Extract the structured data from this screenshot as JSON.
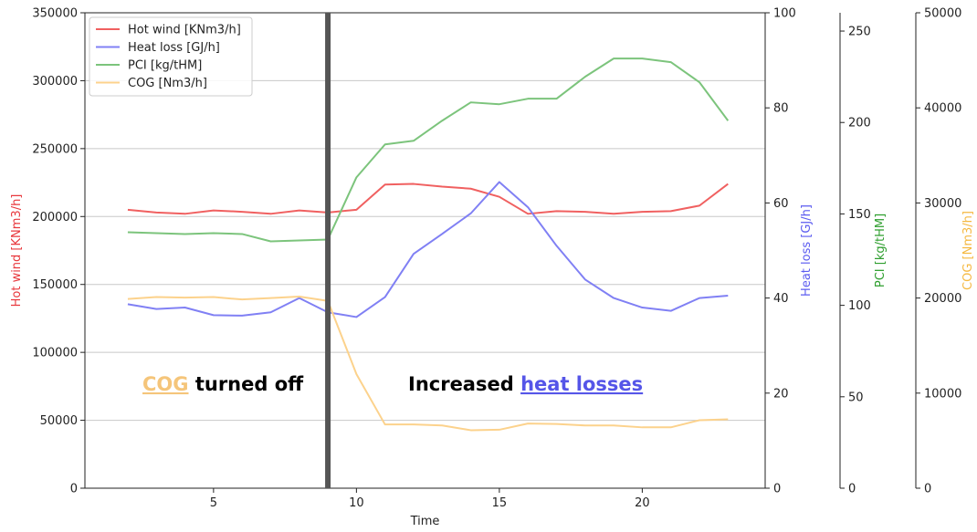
{
  "chart_data": {
    "type": "line",
    "xlabel": "Time",
    "x": [
      2,
      3,
      4,
      5,
      6,
      7,
      8,
      9,
      10,
      11,
      12,
      13,
      14,
      15,
      16,
      17,
      18,
      19,
      20,
      21,
      22,
      23
    ],
    "xticks": [
      5,
      10,
      15,
      20
    ],
    "xlim": [
      0.5,
      24.3
    ],
    "grid": "horizontal",
    "legend_position": "top-left",
    "axes": [
      {
        "id": "hot",
        "label": "Hot wind [KNm3/h]",
        "color": "#e8383d",
        "lim": [
          0,
          350000
        ],
        "ticks": [
          0,
          50000,
          100000,
          150000,
          200000,
          250000,
          300000,
          350000
        ]
      },
      {
        "id": "heat",
        "label": "Heat loss [GJ/h]",
        "color": "#5b5bf0",
        "lim": [
          0,
          100
        ],
        "ticks": [
          0,
          20,
          40,
          60,
          80,
          100
        ]
      },
      {
        "id": "pci",
        "label": "PCI [kg/tHM]",
        "color": "#2e9e2e",
        "lim": [
          0,
          260
        ],
        "ticks": [
          0,
          50,
          100,
          150,
          200,
          250
        ]
      },
      {
        "id": "cog",
        "label": "COG [Nm3/h]",
        "color": "#f5b942",
        "lim": [
          0,
          50000
        ],
        "ticks": [
          0,
          10000,
          20000,
          30000,
          40000,
          50000
        ]
      }
    ],
    "series": [
      {
        "name": "Hot wind [KNm3/h]",
        "axis": "hot",
        "color": "#f06060",
        "values": [
          205000,
          203000,
          202000,
          204500,
          203500,
          202000,
          204500,
          203000,
          205000,
          223500,
          224000,
          222000,
          220500,
          214500,
          202000,
          204000,
          203500,
          202000,
          203500,
          204000,
          208000,
          224000
        ],
        "x_start": 2
      },
      {
        "name": "Heat loss [GJ/h]",
        "axis": "heat",
        "color": "#8080f4",
        "values": [
          38.7,
          37.7,
          38.0,
          36.4,
          36.3,
          37.0,
          40.0,
          37.0,
          36.0,
          40.2,
          49.3,
          53.5,
          57.8,
          64.4,
          59.1,
          51.0,
          43.9,
          40.0,
          38.0,
          37.3,
          40.0,
          40.5
        ],
        "x_start": 2
      },
      {
        "name": "PCI [kg/tHM]",
        "axis": "pci",
        "color": "#7cc47c",
        "values": [
          140,
          139.5,
          139,
          139.5,
          139,
          135,
          135.5,
          136,
          170,
          188,
          190,
          201,
          211,
          210,
          213,
          213,
          225,
          235,
          235,
          233,
          222,
          201
        ],
        "x_start": 2
      },
      {
        "name": "COG [Nm3/h]",
        "axis": "cog",
        "color": "#fcd28c",
        "values": [
          19900,
          20100,
          20050,
          20100,
          19850,
          20000,
          20150,
          19700,
          12000,
          6700,
          6700,
          6600,
          6100,
          6150,
          6800,
          6750,
          6600,
          6600,
          6400,
          6400,
          7150,
          7250
        ],
        "x_start": 2
      }
    ],
    "event_line_x": 9,
    "event_line_color": "#555555",
    "annotations": [
      {
        "parts": [
          {
            "text": "COG",
            "color": "#f5c57a",
            "underline": true
          },
          {
            "text": " turned off",
            "color": "#000000",
            "underline": false
          }
        ]
      },
      {
        "parts": [
          {
            "text": "Increased ",
            "color": "#000000",
            "underline": false
          },
          {
            "text": "heat losses",
            "color": "#5555e8",
            "underline": true
          }
        ]
      }
    ]
  }
}
